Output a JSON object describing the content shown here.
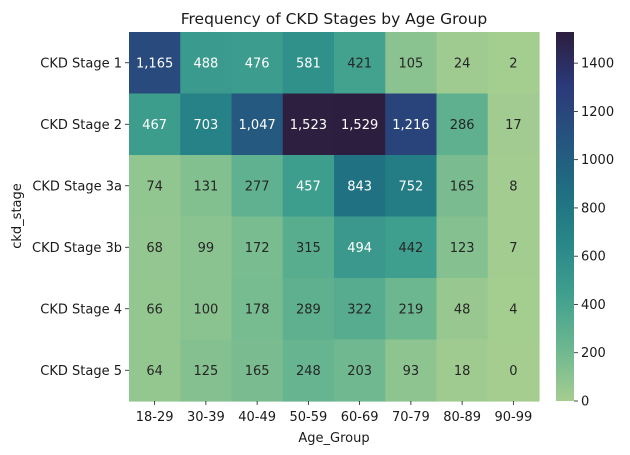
{
  "chart_data": {
    "type": "heatmap",
    "title": "Frequency of CKD Stages by Age Group",
    "xlabel": "Age_Group",
    "ylabel": "ckd_stage",
    "x_categories": [
      "18-29",
      "30-39",
      "40-49",
      "50-59",
      "60-69",
      "70-79",
      "80-89",
      "90-99"
    ],
    "y_categories": [
      "CKD Stage 1",
      "CKD Stage 2",
      "CKD Stage 3a",
      "CKD Stage 3b",
      "CKD Stage 4",
      "CKD Stage 5"
    ],
    "values": [
      [
        1165,
        488,
        476,
        581,
        421,
        105,
        24,
        2
      ],
      [
        467,
        703,
        1047,
        1523,
        1529,
        1216,
        286,
        17
      ],
      [
        74,
        131,
        277,
        457,
        843,
        752,
        165,
        8
      ],
      [
        68,
        99,
        172,
        315,
        494,
        442,
        123,
        7
      ],
      [
        66,
        100,
        178,
        289,
        322,
        219,
        48,
        4
      ],
      [
        64,
        125,
        165,
        248,
        203,
        93,
        18,
        0
      ]
    ],
    "cell_labels": [
      [
        "1,165",
        "488",
        "476",
        "581",
        "421",
        "105",
        "24",
        "2"
      ],
      [
        "467",
        "703",
        "1,047",
        "1,523",
        "1,529",
        "1,216",
        "286",
        "17"
      ],
      [
        "74",
        "131",
        "277",
        "457",
        "843",
        "752",
        "165",
        "8"
      ],
      [
        "68",
        "99",
        "172",
        "315",
        "494",
        "442",
        "123",
        "7"
      ],
      [
        "66",
        "100",
        "178",
        "289",
        "322",
        "219",
        "48",
        "4"
      ],
      [
        "64",
        "125",
        "165",
        "248",
        "203",
        "93",
        "18",
        "0"
      ]
    ],
    "colorbar": {
      "vmin": 0,
      "vmax": 1529,
      "ticks": [
        0,
        200,
        400,
        600,
        800,
        1000,
        1200,
        1400
      ],
      "tick_labels": [
        "0",
        "200",
        "400",
        "600",
        "800",
        "1000",
        "1200",
        "1400"
      ]
    },
    "colormap": "crest",
    "colormap_stops": [
      "#a5cd90",
      "#6cb790",
      "#40a08e",
      "#288788",
      "#1f6e81",
      "#26537e",
      "#2b3979",
      "#2c1e3e"
    ],
    "grid": false
  }
}
